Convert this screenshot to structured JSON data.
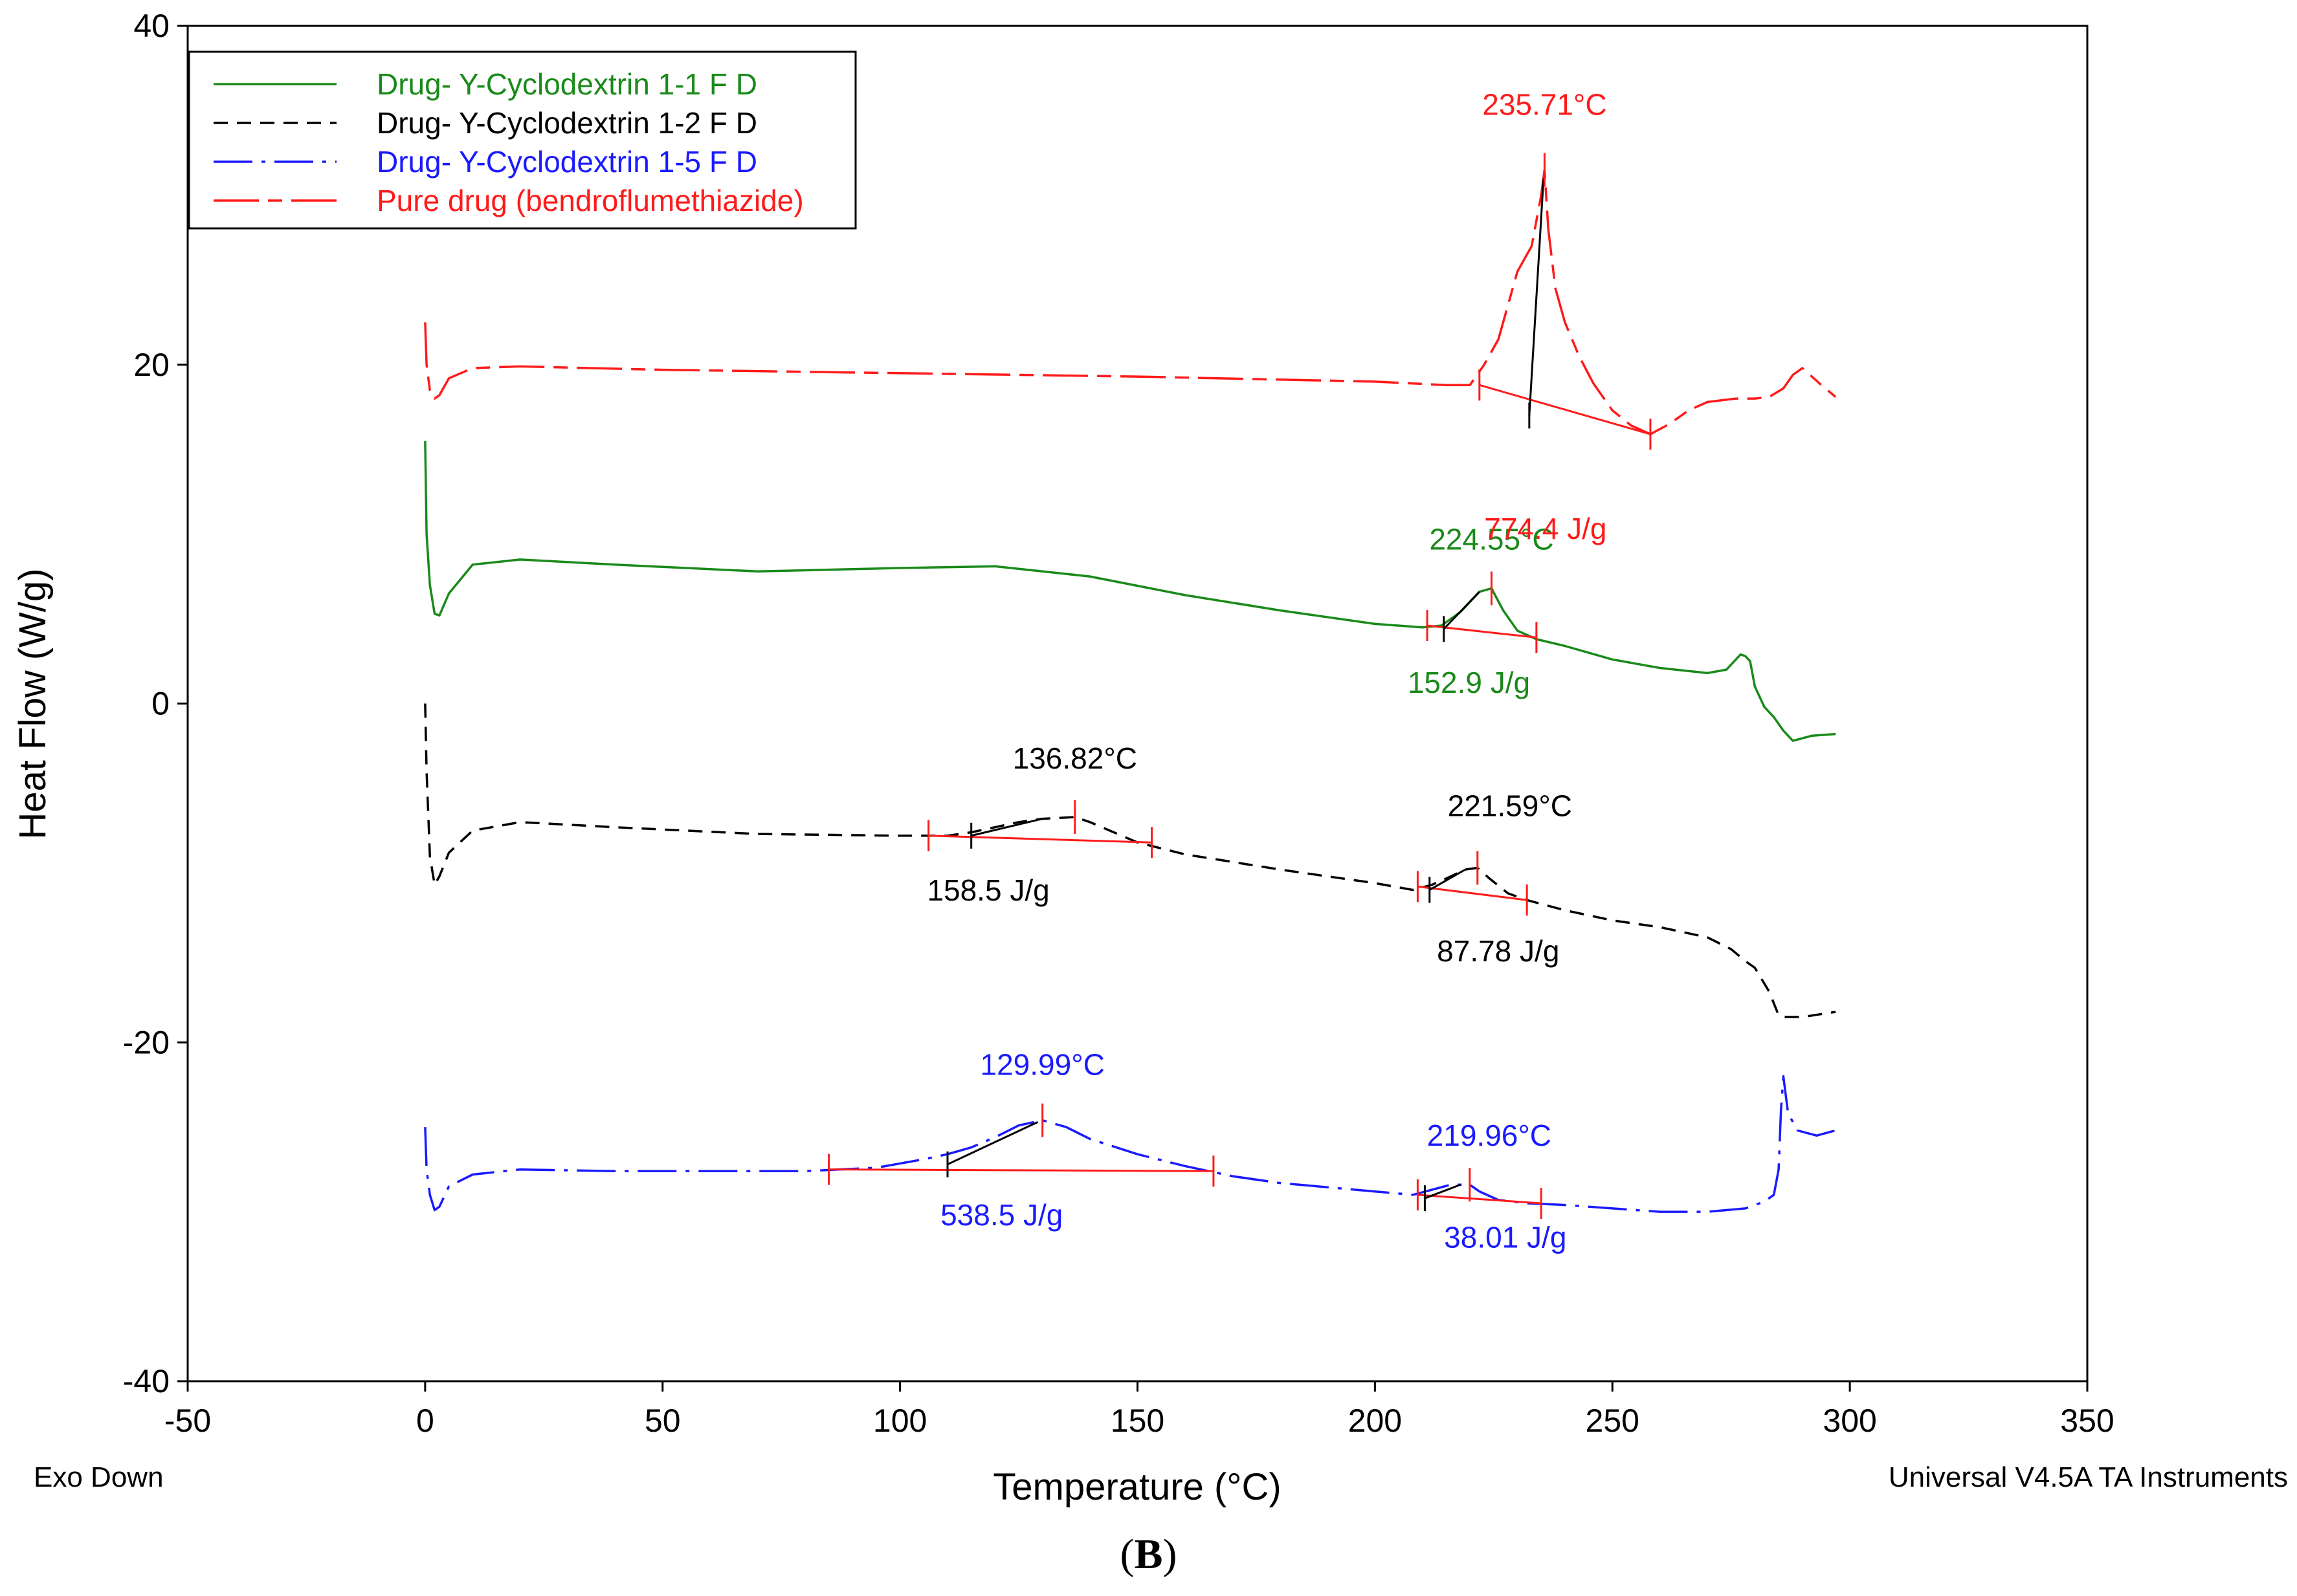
{
  "chart_data": {
    "type": "line",
    "xlabel": "Temperature (°C)",
    "ylabel": "Heat Flow (W/g)",
    "xlim": [
      -50,
      350
    ],
    "ylim": [
      -40,
      40
    ],
    "xticks": [
      -50,
      0,
      50,
      100,
      150,
      200,
      250,
      300,
      350
    ],
    "yticks": [
      -40,
      -20,
      0,
      20,
      40
    ],
    "footer_left": "Exo Down",
    "footer_right": "Universal V4.5A TA Instruments",
    "legend_position": "top-left",
    "series": [
      {
        "name": "Drug- Y-Cyclodextrin 1-1 F D",
        "color": "#1a8a1a",
        "style": "solid",
        "x": [
          0,
          0.3,
          1,
          2,
          3,
          5,
          10,
          20,
          40,
          70,
          100,
          120,
          140,
          160,
          180,
          200,
          210,
          214,
          218,
          222,
          224.55,
          227,
          230,
          234,
          240,
          250,
          260,
          270,
          274,
          276,
          277,
          278,
          279,
          280,
          282,
          284,
          286,
          288,
          292,
          297
        ],
        "y": [
          15.5,
          10,
          7,
          5.3,
          5.2,
          6.5,
          8.2,
          8.5,
          8.2,
          7.8,
          8,
          8.1,
          7.5,
          6.4,
          5.5,
          4.7,
          4.5,
          4.6,
          5.4,
          6.6,
          6.8,
          5.5,
          4.3,
          3.8,
          3.4,
          2.6,
          2.1,
          1.8,
          2.0,
          2.6,
          2.9,
          2.8,
          2.5,
          1.0,
          -0.2,
          -0.8,
          -1.6,
          -2.2,
          -1.9,
          -1.8
        ]
      },
      {
        "name": "Drug- Y-Cyclodextrin 1-2 F D",
        "color": "#000000",
        "style": "dashed",
        "x": [
          0,
          0.3,
          1,
          2,
          3,
          5,
          10,
          20,
          40,
          70,
          100,
          110,
          115,
          120,
          125,
          130,
          136.82,
          140,
          145,
          150,
          160,
          180,
          200,
          208,
          212,
          216,
          219,
          221.59,
          224,
          228,
          232,
          240,
          250,
          260,
          270,
          275,
          278,
          280,
          283,
          285,
          286,
          290,
          297
        ],
        "y": [
          0,
          -4,
          -9,
          -10.7,
          -10.2,
          -8.8,
          -7.5,
          -7,
          -7.3,
          -7.7,
          -7.8,
          -7.8,
          -7.6,
          -7.3,
          -7.0,
          -6.8,
          -6.7,
          -7.0,
          -7.6,
          -8.2,
          -8.9,
          -9.8,
          -10.6,
          -11,
          -10.7,
          -10.2,
          -9.8,
          -9.7,
          -10.3,
          -11.2,
          -11.6,
          -12.2,
          -12.8,
          -13.2,
          -13.8,
          -14.5,
          -15.2,
          -15.6,
          -17,
          -18.4,
          -18.5,
          -18.5,
          -18.2
        ]
      },
      {
        "name": "Drug- Y-Cyclodextrin 1-5 F D",
        "color": "#1a1aff",
        "style": "dashdot",
        "x": [
          0,
          0.3,
          1,
          2,
          3,
          5,
          10,
          20,
          40,
          60,
          80,
          95,
          105,
          110,
          115,
          120,
          125,
          129.99,
          135,
          140,
          150,
          160,
          170,
          180,
          200,
          208,
          212,
          216,
          219.96,
          222,
          226,
          232,
          240,
          250,
          260,
          270,
          278,
          282,
          284,
          285,
          285.5,
          286,
          287,
          289,
          293,
          297
        ],
        "y": [
          -25,
          -27.5,
          -29,
          -29.9,
          -29.7,
          -28.5,
          -27.8,
          -27.5,
          -27.6,
          -27.6,
          -27.6,
          -27.4,
          -26.9,
          -26.6,
          -26.2,
          -25.6,
          -24.9,
          -24.6,
          -25.0,
          -25.7,
          -26.6,
          -27.3,
          -27.9,
          -28.3,
          -28.8,
          -29.0,
          -28.7,
          -28.4,
          -28.4,
          -28.8,
          -29.3,
          -29.5,
          -29.6,
          -29.8,
          -30.0,
          -30.0,
          -29.8,
          -29.4,
          -29.0,
          -27.5,
          -24,
          -22,
          -24.2,
          -25.2,
          -25.5,
          -25.2
        ]
      },
      {
        "name": "Pure drug (bendroflumethiazide)",
        "color": "#ff1a1a",
        "style": "dashdash",
        "x": [
          0,
          0.3,
          1,
          2,
          3,
          5,
          10,
          20,
          50,
          100,
          150,
          200,
          215,
          220,
          223,
          226,
          228,
          230,
          232,
          233,
          234,
          235,
          235.71,
          236.5,
          238,
          240,
          243,
          246,
          250,
          254,
          258,
          262,
          266,
          270,
          276,
          280,
          283,
          286,
          288,
          290,
          294,
          297
        ],
        "y": [
          22.5,
          20,
          18.5,
          18,
          18.2,
          19.2,
          19.8,
          19.9,
          19.7,
          19.5,
          19.3,
          19.0,
          18.8,
          18.8,
          20,
          21.5,
          23.5,
          25.5,
          26.5,
          27,
          28.5,
          30,
          31.5,
          28,
          24.5,
          22.5,
          20.5,
          18.9,
          17.3,
          16.4,
          15.9,
          16.5,
          17.3,
          17.8,
          18.0,
          18.0,
          18.1,
          18.6,
          19.4,
          19.8,
          18.8,
          18.1
        ]
      }
    ],
    "annotations": [
      {
        "series": "Drug- Y-Cyclodextrin 1-1 F D",
        "peak_label": "224.55°C",
        "enthalpy_label": "152.9 J/g",
        "peak_x": 224.55,
        "peak_y": 6.8,
        "baseline": [
          [
            211,
            4.6
          ],
          [
            234,
            3.9
          ]
        ],
        "tangent": [
          [
            214.5,
            4.4
          ],
          [
            222,
            6.6
          ]
        ]
      },
      {
        "series": "Pure drug (bendroflumethiazide)",
        "peak_label": "235.71°C",
        "enthalpy_label": "774.4 J/g",
        "peak_x": 235.71,
        "peak_y": 31.5,
        "baseline": [
          [
            222,
            18.8
          ],
          [
            258,
            15.9
          ]
        ],
        "tangent": [
          [
            232.5,
            17
          ],
          [
            235.5,
            31
          ]
        ]
      },
      {
        "series": "Drug- Y-Cyclodextrin 1-2 F D",
        "peak_label": "136.82°C",
        "enthalpy_label": "158.5 J/g",
        "peak_x": 136.82,
        "peak_y": -6.7,
        "baseline": [
          [
            106,
            -7.8
          ],
          [
            153,
            -8.2
          ]
        ],
        "tangent": [
          [
            115,
            -7.8
          ],
          [
            130,
            -6.8
          ]
        ]
      },
      {
        "series": "Drug- Y-Cyclodextrin 1-2 F D",
        "peak_label": "221.59°C",
        "enthalpy_label": "87.78 J/g",
        "peak_x": 221.59,
        "peak_y": -9.7,
        "baseline": [
          [
            209,
            -10.8
          ],
          [
            232,
            -11.6
          ]
        ],
        "tangent": [
          [
            211.5,
            -11
          ],
          [
            219,
            -9.8
          ]
        ]
      },
      {
        "series": "Drug- Y-Cyclodextrin 1-5 F D",
        "peak_label": "129.99°C",
        "enthalpy_label": "538.5 J/g",
        "peak_x": 129.99,
        "peak_y": -24.6,
        "baseline": [
          [
            85,
            -27.5
          ],
          [
            166,
            -27.6
          ]
        ],
        "tangent": [
          [
            110,
            -27.2
          ],
          [
            129,
            -24.7
          ]
        ]
      },
      {
        "series": "Drug- Y-Cyclodextrin 1-5 F D",
        "peak_label": "219.96°C",
        "enthalpy_label": "38.01 J/g",
        "peak_x": 219.96,
        "peak_y": -28.4,
        "baseline": [
          [
            209,
            -29.0
          ],
          [
            235,
            -29.5
          ]
        ],
        "tangent": [
          [
            210.5,
            -29.2
          ],
          [
            218,
            -28.4
          ]
        ]
      }
    ]
  },
  "caption": {
    "letter": "B",
    "open": "(",
    "close": ")"
  }
}
